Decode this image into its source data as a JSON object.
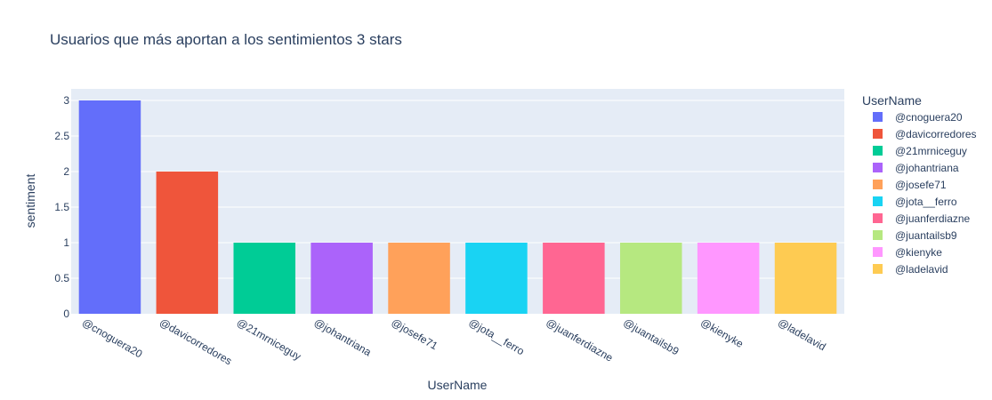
{
  "chart_data": {
    "type": "bar",
    "title": "Usuarios que más aportan a los sentimientos 3 stars",
    "xlabel": "UserName",
    "ylabel": "sentiment",
    "ylim": [
      0,
      3
    ],
    "yticks": [
      "0",
      "0.5",
      "1",
      "1.5",
      "2",
      "2.5",
      "3"
    ],
    "grid": true,
    "legend_title": "UserName",
    "legend_position": "right",
    "categories": [
      "@cnoguera20",
      "@davicorredores",
      "@21mrniceguy",
      "@johantriana",
      "@josefe71",
      "@jota__ferro",
      "@juanferdiazne",
      "@juantailsb9",
      "@kienyke",
      "@ladelavid"
    ],
    "values": [
      3,
      2,
      1,
      1,
      1,
      1,
      1,
      1,
      1,
      1
    ],
    "colors": [
      "#636efa",
      "#ef553b",
      "#00cc96",
      "#ab63fa",
      "#ffa15a",
      "#19d3f3",
      "#ff6692",
      "#b6e880",
      "#ff97ff",
      "#fecb52"
    ],
    "plot_bg": "#e5ecf6",
    "grid_color": "#ffffff"
  }
}
